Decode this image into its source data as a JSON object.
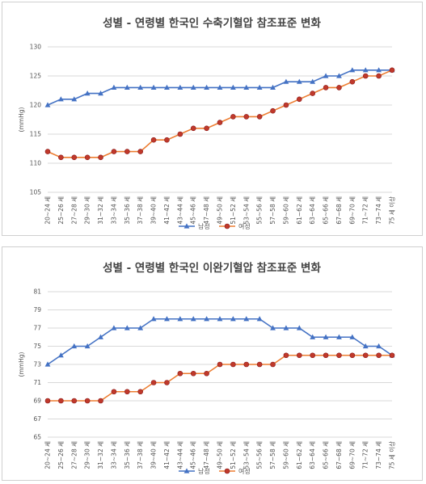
{
  "chart_data": [
    {
      "type": "line",
      "title": "성별 - 연령별 한국인 수축기혈압 참조표준 변화",
      "ylabel": "(mmHg)",
      "ylim": [
        105,
        130
      ],
      "yticks": [
        105,
        110,
        115,
        120,
        125,
        130
      ],
      "grid": true,
      "legend_position": "bottom",
      "categories": [
        "20~24 세",
        "25~26 세",
        "27~28 세",
        "29~30 세",
        "31~32 세",
        "33~34 세",
        "35~36 세",
        "37~38 세",
        "39~40 세",
        "41~42 세",
        "43~44 세",
        "45~46 세",
        "47~48 세",
        "49~50 세",
        "51~52 세",
        "53~54 세",
        "55~56 세",
        "57~58 세",
        "59~60 세",
        "61~62 세",
        "63~64 세",
        "65~66 세",
        "67~68 세",
        "69~70 세",
        "71~72 세",
        "73~74 세",
        "75 세 이상"
      ],
      "series": [
        {
          "name": "남성",
          "color": "#4472c4",
          "marker": "triangle",
          "values": [
            120,
            121,
            121,
            122,
            122,
            123,
            123,
            123,
            123,
            123,
            123,
            123,
            123,
            123,
            123,
            123,
            123,
            123,
            124,
            124,
            124,
            125,
            125,
            126,
            126,
            126,
            126
          ]
        },
        {
          "name": "여성",
          "color": "#ed7d31",
          "marker": "circle",
          "values": [
            112,
            111,
            111,
            111,
            111,
            112,
            112,
            112,
            114,
            114,
            115,
            116,
            116,
            117,
            118,
            118,
            118,
            119,
            120,
            121,
            122,
            123,
            123,
            124,
            125,
            125,
            126
          ]
        }
      ]
    },
    {
      "type": "line",
      "title": "성별 - 연령별 한국인 이완기혈압 참조표준 변화",
      "ylabel": "(mmHg)",
      "ylim": [
        65,
        81
      ],
      "yticks": [
        65,
        67,
        69,
        71,
        73,
        75,
        77,
        79,
        81
      ],
      "grid": true,
      "legend_position": "bottom",
      "categories": [
        "20~24 세",
        "25~26 세",
        "27~28 세",
        "29~30 세",
        "31~32 세",
        "33~34 세",
        "35~36 세",
        "37~38 세",
        "39~40 세",
        "41~42 세",
        "43~44 세",
        "45~46 세",
        "47~48 세",
        "49~50 세",
        "51~52 세",
        "53~54 세",
        "55~56 세",
        "57~58 세",
        "59~60 세",
        "61~62 세",
        "63~64 세",
        "65~66 세",
        "67~68 세",
        "69~70 세",
        "71~72 세",
        "73~74 세",
        "75 세 이상"
      ],
      "series": [
        {
          "name": "남성",
          "color": "#4472c4",
          "marker": "triangle",
          "values": [
            73,
            74,
            75,
            75,
            76,
            77,
            77,
            77,
            78,
            78,
            78,
            78,
            78,
            78,
            78,
            78,
            78,
            77,
            77,
            77,
            76,
            76,
            76,
            76,
            75,
            75,
            74
          ]
        },
        {
          "name": "여성",
          "color": "#ed7d31",
          "marker": "circle",
          "values": [
            69,
            69,
            69,
            69,
            69,
            70,
            70,
            70,
            71,
            71,
            72,
            72,
            72,
            73,
            73,
            73,
            73,
            73,
            74,
            74,
            74,
            74,
            74,
            74,
            74,
            74,
            74
          ]
        }
      ]
    }
  ]
}
